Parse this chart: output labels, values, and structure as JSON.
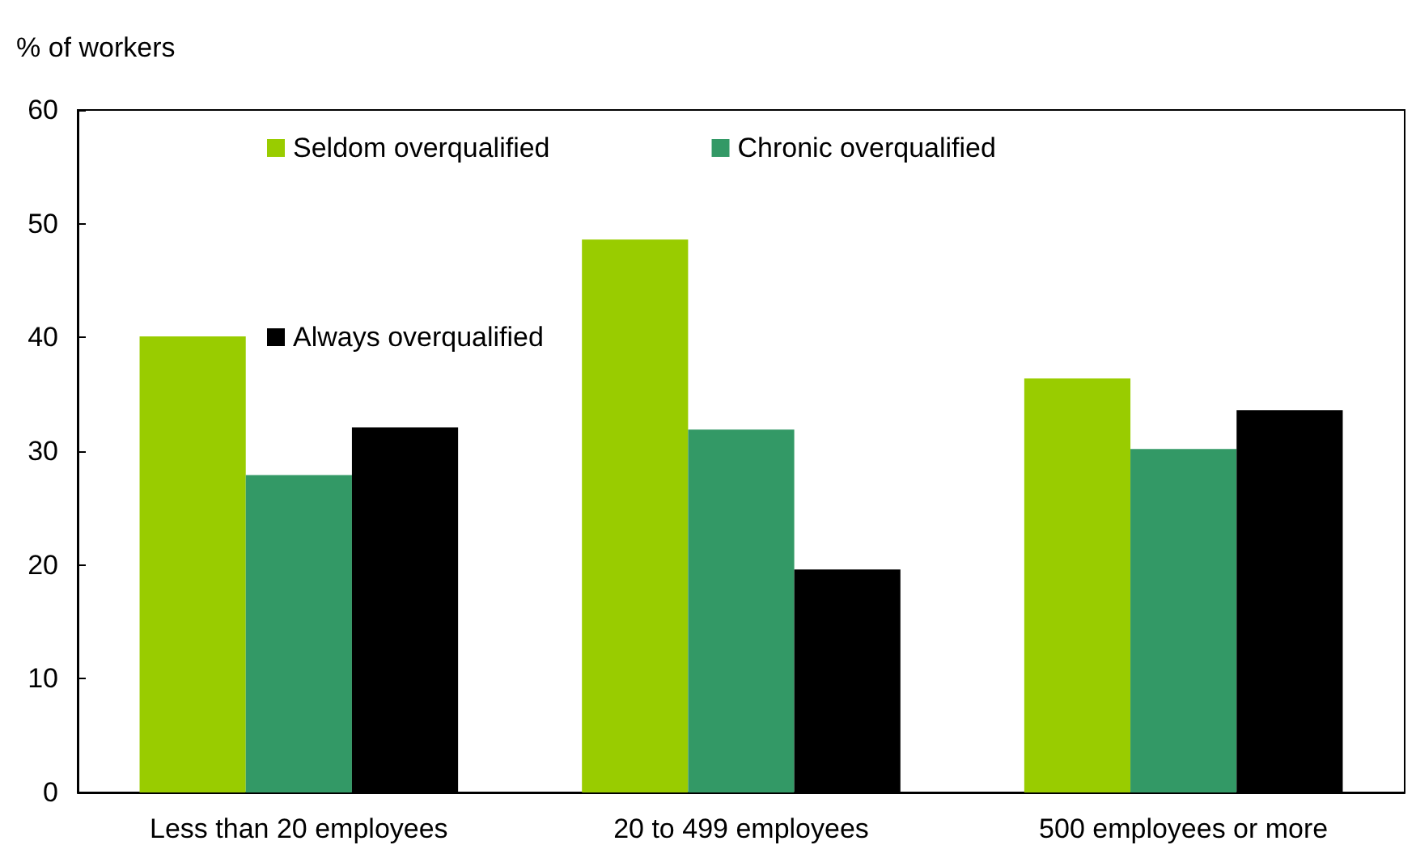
{
  "chart_data": {
    "type": "bar",
    "ylabel": "% of workers",
    "categories": [
      "Less than 20 employees",
      "20 to 499 employees",
      "500 employees or more"
    ],
    "series": [
      {
        "name": "Seldom overqualified",
        "color": "#99cc00",
        "values": [
          40.1,
          48.6,
          36.4
        ]
      },
      {
        "name": "Chronic overqualified",
        "color": "#339966",
        "values": [
          27.9,
          31.9,
          30.2
        ]
      },
      {
        "name": "Always overqualified",
        "color": "#000000",
        "values": [
          32.1,
          19.6,
          33.6
        ]
      }
    ],
    "ylim": [
      0,
      60
    ],
    "yticks": [
      0,
      10,
      20,
      30,
      40,
      50,
      60
    ],
    "grid": false,
    "legend": "top"
  }
}
